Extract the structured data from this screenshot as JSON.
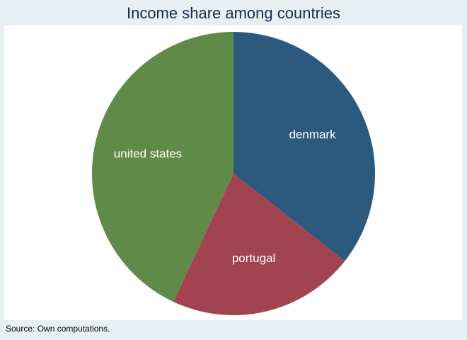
{
  "chart_data": {
    "type": "pie",
    "title": "Income share among countries",
    "note": "Source: Own computations.",
    "slices": [
      {
        "label": "denmark",
        "value": 35.6,
        "color": "#2c5a7e"
      },
      {
        "label": "portugal",
        "value": 21.4,
        "color": "#a24450"
      },
      {
        "label": "united states",
        "value": 43.0,
        "color": "#608a47"
      }
    ],
    "start_angle_deg": 90,
    "direction": "clockwise"
  }
}
